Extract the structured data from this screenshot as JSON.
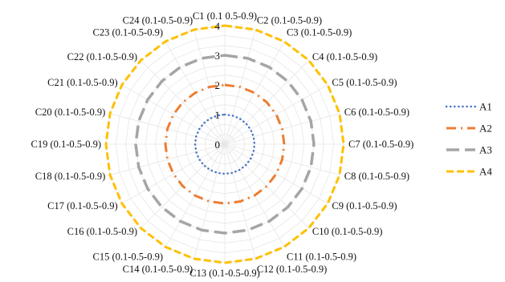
{
  "chart_data": {
    "type": "radar",
    "title": "",
    "categories": [
      "C1 (0.1 0.5-0.9)",
      "C2 (0.1-0.5-0.9)",
      "C3 (0.1-0.5-0.9)",
      "C4 (0.1-0.5-0.9)",
      "C5 (0.1-0.5-0.9)",
      "C6 (0.1-0.5-0.9)",
      "C7 (0.1-0.5-0.9)",
      "C8 (0.1-0.5-0.9)",
      "C9 (0.1-0.5-0.9)",
      "C10 (0.1-0.5-0.9)",
      "C11 (0.1-0.5-0.9)",
      "C12 (0.1-0.5-0.9)",
      "C13 (0.1-0.5-0.9)",
      "C14 (0.1-0.5-0.9)",
      "C15 (0.1-0.5-0.9)",
      "C16 (0.1-0.5-0.9)",
      "C17 (0.1-0.5-0.9)",
      "C18 (0.1-0.5-0.9)",
      "C19 (0.1-0.5-0.9)",
      "C20 (0.1-0.5-0.9)",
      "C21 (0.1-0.5-0.9)",
      "C22 (0.1-0.5-0.9)",
      "C23 (0.1-0.5-0.9)",
      "C24 (0.1-0.5-0.9)"
    ],
    "radial_ticks": [
      "0",
      "1",
      "2",
      "3",
      "4"
    ],
    "rlim": [
      0,
      4
    ],
    "grid": true,
    "legend_position": "right",
    "series": [
      {
        "name": "A1",
        "color": "#4472C4",
        "style": "dotted",
        "values": [
          1,
          1,
          1,
          1,
          1,
          1,
          1,
          1,
          1,
          1,
          1,
          1,
          1,
          1,
          1,
          1,
          1,
          1,
          1,
          1,
          1,
          1,
          1,
          1
        ]
      },
      {
        "name": "A2",
        "color": "#ED7D31",
        "style": "dash-dot",
        "values": [
          2,
          2,
          2,
          2,
          2,
          2,
          2,
          2,
          2,
          2,
          2,
          2,
          2,
          2,
          2,
          2,
          2,
          2,
          2,
          2,
          2,
          2,
          2,
          2
        ]
      },
      {
        "name": "A3",
        "color": "#A5A5A5",
        "style": "long-dash",
        "values": [
          3,
          3,
          3,
          3,
          3,
          3,
          3,
          3,
          3,
          3,
          3,
          3,
          3,
          3,
          3,
          3,
          3,
          3,
          3,
          3,
          3,
          3,
          3,
          3
        ]
      },
      {
        "name": "A4",
        "color": "#FFC000",
        "style": "dashed",
        "values": [
          4,
          4,
          4,
          4,
          4,
          4,
          4,
          4,
          4,
          4,
          4,
          4,
          4,
          4,
          4,
          4,
          4,
          4,
          4,
          4,
          4,
          4,
          4,
          4
        ]
      }
    ]
  }
}
